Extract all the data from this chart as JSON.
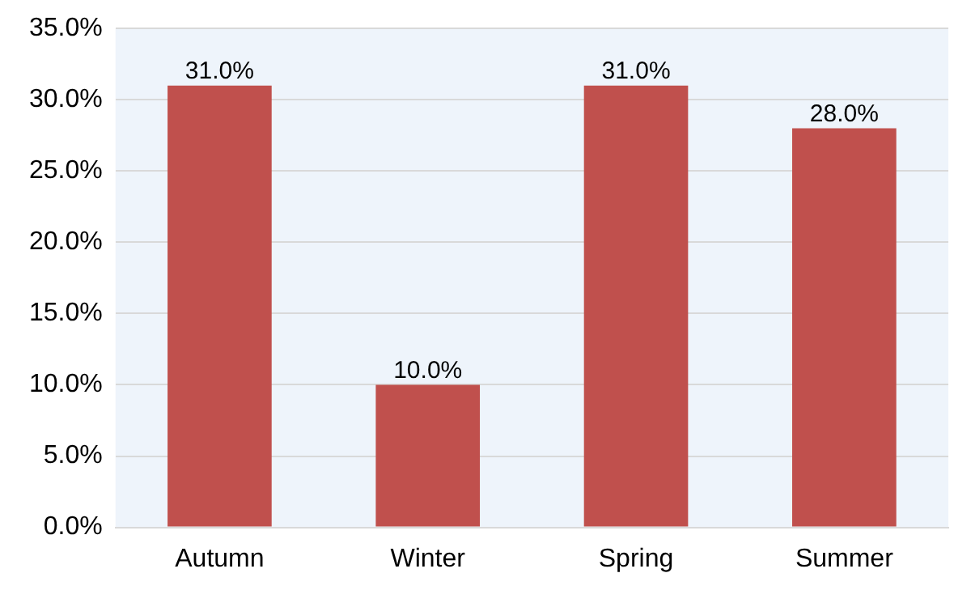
{
  "chart_data": {
    "type": "bar",
    "categories": [
      "Autumn",
      "Winter",
      "Spring",
      "Summer"
    ],
    "values": [
      31,
      10,
      31,
      28
    ],
    "color": "#c0504d",
    "value_labels": [
      "31.0%",
      "10.0%",
      "31.0%",
      "28.0%"
    ],
    "ylim": [
      0,
      35
    ],
    "yticks": [
      {
        "value": 0,
        "label": "0.0%"
      },
      {
        "value": 5,
        "label": "5.0%"
      },
      {
        "value": 10,
        "label": "10.0%"
      },
      {
        "value": 15,
        "label": "15.0%"
      },
      {
        "value": 20,
        "label": "20.0%"
      },
      {
        "value": 25,
        "label": "25.0%"
      },
      {
        "value": 30,
        "label": "30.0%"
      },
      {
        "value": 35,
        "label": "35.0%"
      }
    ],
    "grid": "y"
  }
}
